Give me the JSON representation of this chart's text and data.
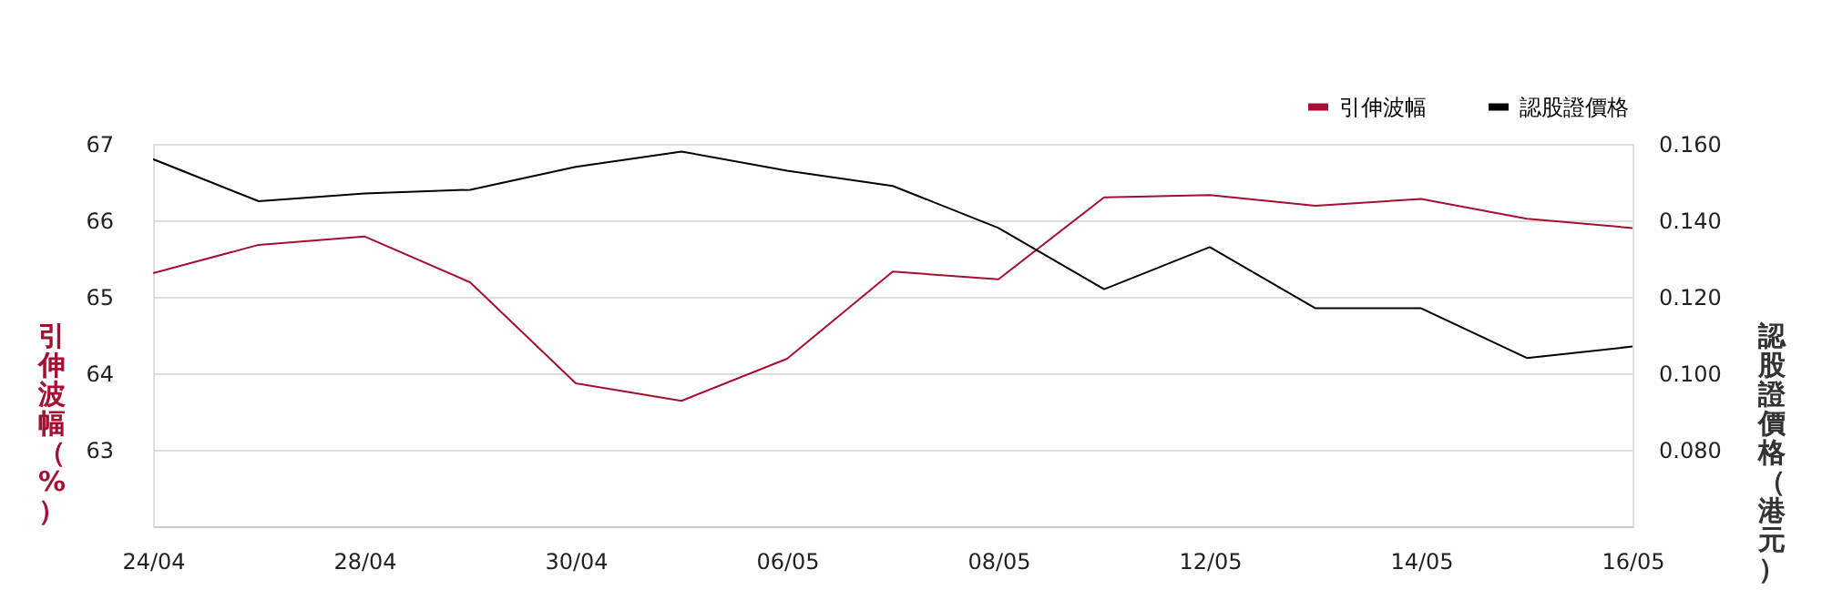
{
  "chart_data": {
    "type": "line",
    "categories": [
      "24/04",
      null,
      "28/04",
      null,
      "30/04",
      null,
      "06/05",
      null,
      "08/05",
      null,
      "12/05",
      null,
      "14/05",
      null,
      "16/05"
    ],
    "ylabel": "引伸波幅（%）",
    "y2label": "認股證價格（港元）",
    "series": [
      {
        "name": "引伸波幅",
        "color": "#a50f32",
        "values": [
          65.31,
          65.68,
          65.79,
          65.19,
          63.87,
          63.64,
          64.19,
          65.33,
          65.23,
          66.3,
          66.33,
          66.19,
          66.28,
          66.02,
          65.9
        ]
      },
      {
        "name": "認股證價格",
        "color": "#000000",
        "axis": "y2",
        "values": [
          0.156,
          0.145,
          0.147,
          0.148,
          0.154,
          0.158,
          0.153,
          0.149,
          0.138,
          0.122,
          0.133,
          0.117,
          0.117,
          0.104,
          0.107
        ]
      }
    ],
    "ylim": [
      62,
      67
    ],
    "yticks": [
      63,
      64,
      65,
      66,
      67
    ],
    "y2lim": [
      0.06,
      0.16
    ],
    "y2ticks": [
      {
        "value": 0.08,
        "label": "0.080"
      },
      {
        "value": 0.1,
        "label": "0.100"
      },
      {
        "value": 0.12,
        "label": "0.120"
      },
      {
        "value": 0.14,
        "label": "0.140"
      },
      {
        "value": 0.16,
        "label": "0.160"
      }
    ],
    "grid": "y",
    "legend": "top right",
    "marker": "none",
    "line_style": "solid"
  }
}
